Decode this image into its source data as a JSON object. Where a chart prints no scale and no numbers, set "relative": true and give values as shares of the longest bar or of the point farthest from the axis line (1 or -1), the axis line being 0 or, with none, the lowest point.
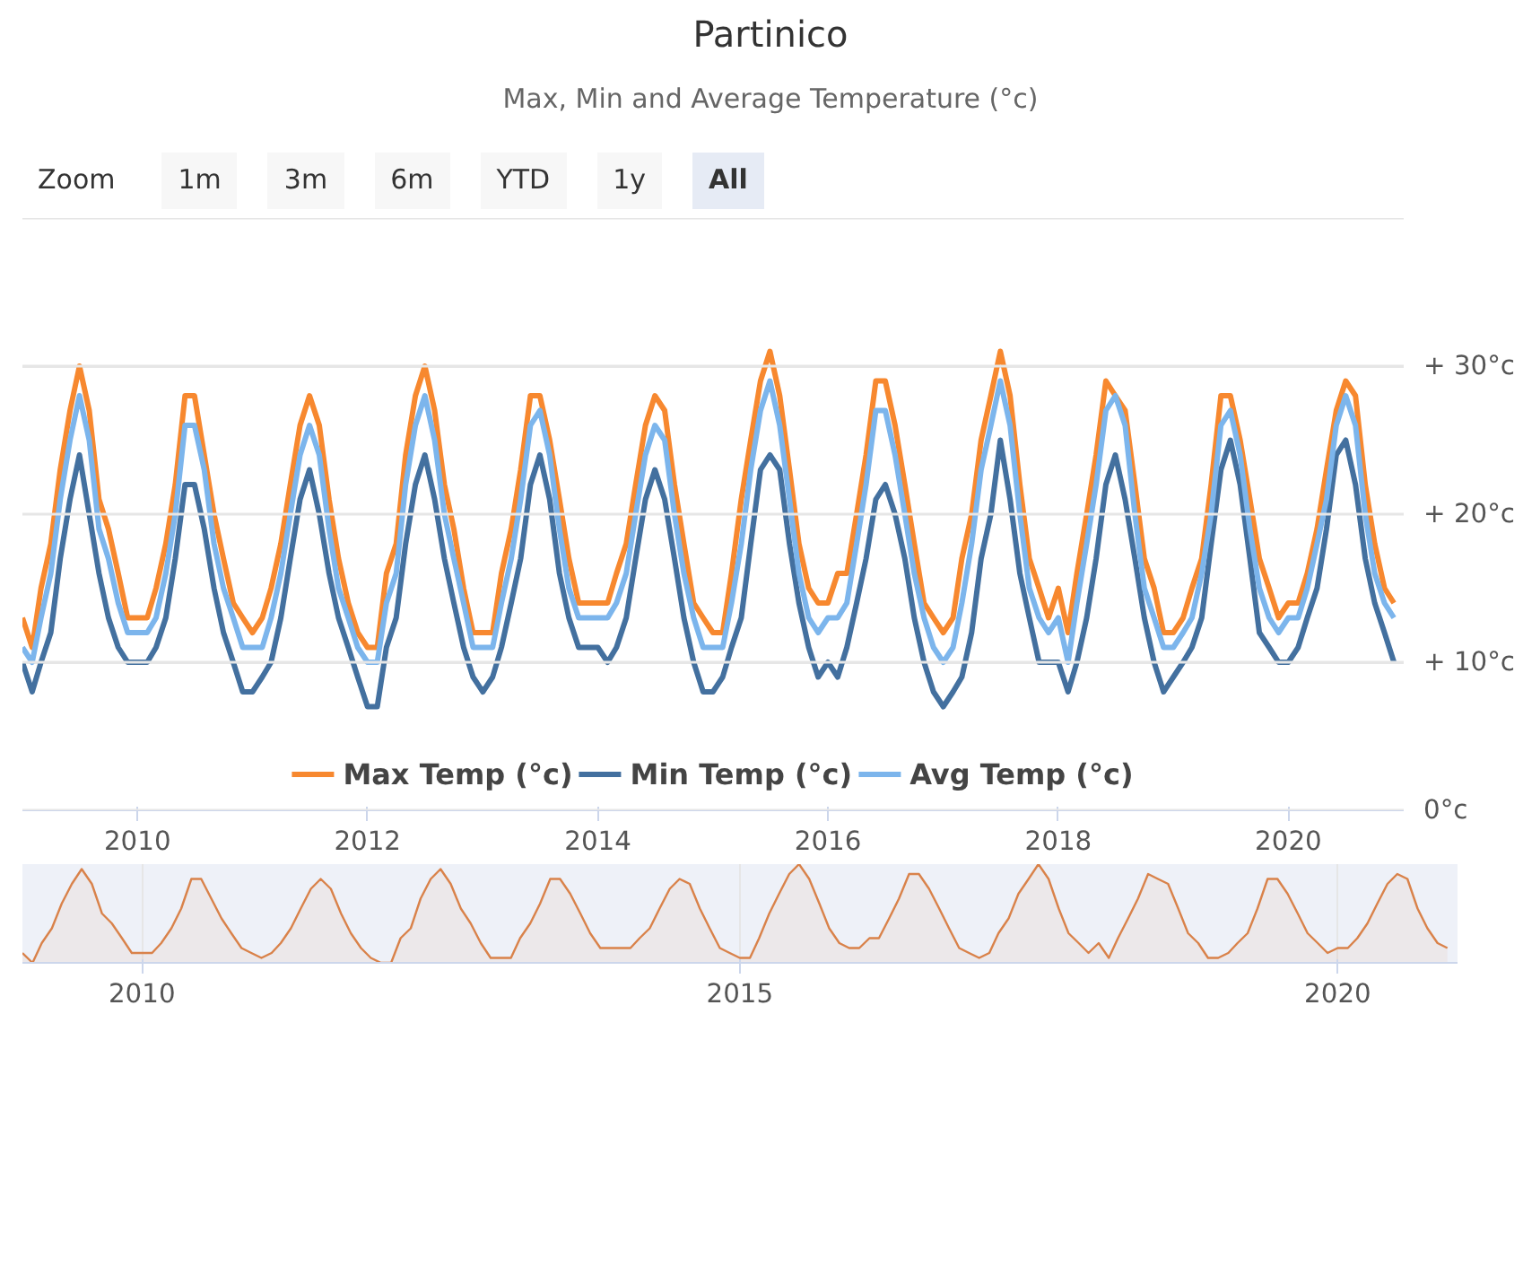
{
  "chart_data": [
    {
      "type": "line",
      "title": "Partinico",
      "subtitle": "Max, Min and Average Temperature (°c)",
      "annotations": [
        "Zoom",
        "1m",
        "3m",
        "6m",
        "YTD",
        "1y",
        "All"
      ],
      "x": [
        "2009-01",
        "2009-02",
        "2009-03",
        "2009-04",
        "2009-05",
        "2009-06",
        "2009-07",
        "2009-08",
        "2009-09",
        "2009-10",
        "2009-11",
        "2009-12",
        "2010-01",
        "2010-02",
        "2010-03",
        "2010-04",
        "2010-05",
        "2010-06",
        "2010-07",
        "2010-08",
        "2010-09",
        "2010-10",
        "2010-11",
        "2010-12",
        "2011-01",
        "2011-02",
        "2011-03",
        "2011-04",
        "2011-05",
        "2011-06",
        "2011-07",
        "2011-08",
        "2011-09",
        "2011-10",
        "2011-11",
        "2011-12",
        "2012-01",
        "2012-02",
        "2012-03",
        "2012-04",
        "2012-05",
        "2012-06",
        "2012-07",
        "2012-08",
        "2012-09",
        "2012-10",
        "2012-11",
        "2012-12",
        "2013-01",
        "2013-02",
        "2013-03",
        "2013-04",
        "2013-05",
        "2013-06",
        "2013-07",
        "2013-08",
        "2013-09",
        "2013-10",
        "2013-11",
        "2013-12",
        "2014-01",
        "2014-02",
        "2014-03",
        "2014-04",
        "2014-05",
        "2014-06",
        "2014-07",
        "2014-08",
        "2014-09",
        "2014-10",
        "2014-11",
        "2014-12",
        "2015-01",
        "2015-02",
        "2015-03",
        "2015-04",
        "2015-05",
        "2015-06",
        "2015-07",
        "2015-08",
        "2015-09",
        "2015-10",
        "2015-11",
        "2015-12",
        "2016-01",
        "2016-02",
        "2016-03",
        "2016-04",
        "2016-05",
        "2016-06",
        "2016-07",
        "2016-08",
        "2016-09",
        "2016-10",
        "2016-11",
        "2016-12",
        "2017-01",
        "2017-02",
        "2017-03",
        "2017-04",
        "2017-05",
        "2017-06",
        "2017-07",
        "2017-08",
        "2017-09",
        "2017-10",
        "2017-11",
        "2017-12",
        "2018-01",
        "2018-02",
        "2018-03",
        "2018-04",
        "2018-05",
        "2018-06",
        "2018-07",
        "2018-08",
        "2018-09",
        "2018-10",
        "2018-11",
        "2018-12",
        "2019-01",
        "2019-02",
        "2019-03",
        "2019-04",
        "2019-05",
        "2019-06",
        "2019-07",
        "2019-08",
        "2019-09",
        "2019-10",
        "2019-11",
        "2019-12",
        "2020-01",
        "2020-02",
        "2020-03",
        "2020-04",
        "2020-05",
        "2020-06",
        "2020-07",
        "2020-08",
        "2020-09",
        "2020-10",
        "2020-11",
        "2020-12"
      ],
      "xlim": [
        "2009-01",
        "2021-01"
      ],
      "xticks": [
        {
          "value": "2010-01",
          "label": "2010"
        },
        {
          "value": "2012-01",
          "label": "2012"
        },
        {
          "value": "2014-01",
          "label": "2014"
        },
        {
          "value": "2016-01",
          "label": "2016"
        },
        {
          "value": "2018-01",
          "label": "2018"
        },
        {
          "value": "2020-01",
          "label": "2020"
        }
      ],
      "ylim": [
        0,
        40
      ],
      "yticks": [
        {
          "value": 0,
          "label": "0°c"
        },
        {
          "value": 10,
          "label": "+ 10°c"
        },
        {
          "value": 20,
          "label": "+ 20°c"
        },
        {
          "value": 30,
          "label": "+ 30°c"
        },
        {
          "value": 40,
          "label": null
        }
      ],
      "grid": "y",
      "legend": "bottom",
      "marker": "none",
      "line_style": "solid",
      "series": [
        {
          "name": "Max Temp (°c)",
          "color": "#f7882f",
          "values": [
            13,
            11,
            15,
            18,
            23,
            27,
            30,
            27,
            21,
            19,
            16,
            13,
            13,
            13,
            15,
            18,
            22,
            28,
            28,
            24,
            20,
            17,
            14,
            13,
            12,
            13,
            15,
            18,
            22,
            26,
            28,
            26,
            21,
            17,
            14,
            12,
            11,
            11,
            16,
            18,
            24,
            28,
            30,
            27,
            22,
            19,
            15,
            12,
            12,
            12,
            16,
            19,
            23,
            28,
            28,
            25,
            21,
            17,
            14,
            14,
            14,
            14,
            16,
            18,
            22,
            26,
            28,
            27,
            22,
            18,
            14,
            13,
            12,
            12,
            16,
            21,
            25,
            29,
            31,
            28,
            23,
            18,
            15,
            14,
            14,
            16,
            16,
            20,
            24,
            29,
            29,
            26,
            22,
            18,
            14,
            13,
            12,
            13,
            17,
            20,
            25,
            28,
            31,
            28,
            22,
            17,
            15,
            13,
            15,
            12,
            16,
            20,
            24,
            29,
            28,
            27,
            22,
            17,
            15,
            12,
            12,
            13,
            15,
            17,
            22,
            28,
            28,
            25,
            21,
            17,
            15,
            13,
            14,
            14,
            16,
            19,
            23,
            27,
            29,
            28,
            22,
            18,
            15,
            14
          ]
        },
        {
          "name": "Min Temp (°c)",
          "color": "#43709f",
          "values": [
            10,
            8,
            10,
            12,
            17,
            21,
            24,
            20,
            16,
            13,
            11,
            10,
            10,
            10,
            11,
            13,
            17,
            22,
            22,
            19,
            15,
            12,
            10,
            8,
            8,
            9,
            10,
            13,
            17,
            21,
            23,
            20,
            16,
            13,
            11,
            9,
            7,
            7,
            11,
            13,
            18,
            22,
            24,
            21,
            17,
            14,
            11,
            9,
            8,
            9,
            11,
            14,
            17,
            22,
            24,
            21,
            16,
            13,
            11,
            11,
            11,
            10,
            11,
            13,
            17,
            21,
            23,
            21,
            17,
            13,
            10,
            8,
            8,
            9,
            11,
            13,
            18,
            23,
            24,
            23,
            18,
            14,
            11,
            9,
            10,
            9,
            11,
            14,
            17,
            21,
            22,
            20,
            17,
            13,
            10,
            8,
            7,
            8,
            9,
            12,
            17,
            20,
            25,
            21,
            16,
            13,
            10,
            10,
            10,
            8,
            10,
            13,
            17,
            22,
            24,
            21,
            17,
            13,
            10,
            8,
            9,
            10,
            11,
            13,
            18,
            23,
            25,
            22,
            17,
            12,
            11,
            10,
            10,
            11,
            13,
            15,
            19,
            24,
            25,
            22,
            17,
            14,
            12,
            10
          ]
        },
        {
          "name": "Avg Temp (°c)",
          "color": "#7cb5ec",
          "values": [
            11,
            10,
            13,
            16,
            21,
            25,
            28,
            25,
            19,
            17,
            14,
            12,
            12,
            12,
            13,
            16,
            20,
            26,
            26,
            23,
            18,
            15,
            13,
            11,
            11,
            11,
            13,
            16,
            20,
            24,
            26,
            24,
            19,
            15,
            13,
            11,
            10,
            10,
            14,
            16,
            22,
            26,
            28,
            25,
            20,
            17,
            14,
            11,
            11,
            11,
            14,
            17,
            21,
            26,
            27,
            24,
            19,
            15,
            13,
            13,
            13,
            13,
            14,
            16,
            20,
            24,
            26,
            25,
            20,
            16,
            13,
            11,
            11,
            11,
            14,
            18,
            23,
            27,
            29,
            26,
            21,
            16,
            13,
            12,
            13,
            13,
            14,
            18,
            22,
            27,
            27,
            24,
            20,
            16,
            13,
            11,
            10,
            11,
            14,
            18,
            23,
            26,
            29,
            26,
            20,
            15,
            13,
            12,
            13,
            10,
            14,
            18,
            22,
            27,
            28,
            26,
            20,
            15,
            13,
            11,
            11,
            12,
            13,
            16,
            20,
            26,
            27,
            24,
            19,
            15,
            13,
            12,
            13,
            13,
            15,
            18,
            21,
            26,
            28,
            26,
            20,
            16,
            14,
            13
          ]
        }
      ]
    },
    {
      "type": "area",
      "relative": true,
      "xlim": [
        "2009-01",
        "2021-01"
      ],
      "xticks": [
        {
          "value": "2010-01",
          "label": "2010"
        },
        {
          "value": "2015-01",
          "label": "2015"
        },
        {
          "value": "2020-01",
          "label": "2020"
        }
      ],
      "grid": "x",
      "x": [
        "2009-01",
        "2009-02",
        "2009-03",
        "2009-04",
        "2009-05",
        "2009-06",
        "2009-07",
        "2009-08",
        "2009-09",
        "2009-10",
        "2009-11",
        "2009-12",
        "2010-01",
        "2010-02",
        "2010-03",
        "2010-04",
        "2010-05",
        "2010-06",
        "2010-07",
        "2010-08",
        "2010-09",
        "2010-10",
        "2010-11",
        "2010-12",
        "2011-01",
        "2011-02",
        "2011-03",
        "2011-04",
        "2011-05",
        "2011-06",
        "2011-07",
        "2011-08",
        "2011-09",
        "2011-10",
        "2011-11",
        "2011-12",
        "2012-01",
        "2012-02",
        "2012-03",
        "2012-04",
        "2012-05",
        "2012-06",
        "2012-07",
        "2012-08",
        "2012-09",
        "2012-10",
        "2012-11",
        "2012-12",
        "2013-01",
        "2013-02",
        "2013-03",
        "2013-04",
        "2013-05",
        "2013-06",
        "2013-07",
        "2013-08",
        "2013-09",
        "2013-10",
        "2013-11",
        "2013-12",
        "2014-01",
        "2014-02",
        "2014-03",
        "2014-04",
        "2014-05",
        "2014-06",
        "2014-07",
        "2014-08",
        "2014-09",
        "2014-10",
        "2014-11",
        "2014-12",
        "2015-01",
        "2015-02",
        "2015-03",
        "2015-04",
        "2015-05",
        "2015-06",
        "2015-07",
        "2015-08",
        "2015-09",
        "2015-10",
        "2015-11",
        "2015-12",
        "2016-01",
        "2016-02",
        "2016-03",
        "2016-04",
        "2016-05",
        "2016-06",
        "2016-07",
        "2016-08",
        "2016-09",
        "2016-10",
        "2016-11",
        "2016-12",
        "2017-01",
        "2017-02",
        "2017-03",
        "2017-04",
        "2017-05",
        "2017-06",
        "2017-07",
        "2017-08",
        "2017-09",
        "2017-10",
        "2017-11",
        "2017-12",
        "2018-01",
        "2018-02",
        "2018-03",
        "2018-04",
        "2018-05",
        "2018-06",
        "2018-07",
        "2018-08",
        "2018-09",
        "2018-10",
        "2018-11",
        "2018-12",
        "2019-01",
        "2019-02",
        "2019-03",
        "2019-04",
        "2019-05",
        "2019-06",
        "2019-07",
        "2019-08",
        "2019-09",
        "2019-10",
        "2019-11",
        "2019-12",
        "2020-01",
        "2020-02",
        "2020-03",
        "2020-04",
        "2020-05",
        "2020-06",
        "2020-07",
        "2020-08",
        "2020-09",
        "2020-10",
        "2020-11",
        "2020-12"
      ],
      "series": [
        {
          "color": "#d9824a",
          "values": [
            0.1,
            0,
            0.2,
            0.35,
            0.6,
            0.8,
            0.95,
            0.8,
            0.5,
            0.4,
            0.25,
            0.1,
            0.1,
            0.1,
            0.2,
            0.35,
            0.55,
            0.85,
            0.85,
            0.65,
            0.45,
            0.3,
            0.15,
            0.1,
            0.05,
            0.1,
            0.2,
            0.35,
            0.55,
            0.75,
            0.85,
            0.75,
            0.5,
            0.3,
            0.15,
            0.05,
            0,
            0,
            0.25,
            0.35,
            0.65,
            0.85,
            0.95,
            0.8,
            0.55,
            0.4,
            0.2,
            0.05,
            0.05,
            0.05,
            0.25,
            0.4,
            0.6,
            0.85,
            0.85,
            0.7,
            0.5,
            0.3,
            0.15,
            0.15,
            0.15,
            0.15,
            0.25,
            0.35,
            0.55,
            0.75,
            0.85,
            0.8,
            0.55,
            0.35,
            0.15,
            0.1,
            0.05,
            0.05,
            0.25,
            0.5,
            0.7,
            0.9,
            1,
            0.85,
            0.6,
            0.35,
            0.2,
            0.15,
            0.15,
            0.25,
            0.25,
            0.45,
            0.65,
            0.9,
            0.9,
            0.75,
            0.55,
            0.35,
            0.15,
            0.1,
            0.05,
            0.1,
            0.3,
            0.45,
            0.7,
            0.85,
            1,
            0.85,
            0.55,
            0.3,
            0.2,
            0.1,
            0.2,
            0.05,
            0.25,
            0.45,
            0.65,
            0.9,
            0.85,
            0.8,
            0.55,
            0.3,
            0.2,
            0.05,
            0.05,
            0.1,
            0.2,
            0.3,
            0.55,
            0.85,
            0.85,
            0.7,
            0.5,
            0.3,
            0.2,
            0.1,
            0.15,
            0.15,
            0.25,
            0.4,
            0.6,
            0.8,
            0.9,
            0.85,
            0.55,
            0.35,
            0.2,
            0.15
          ]
        }
      ]
    }
  ]
}
